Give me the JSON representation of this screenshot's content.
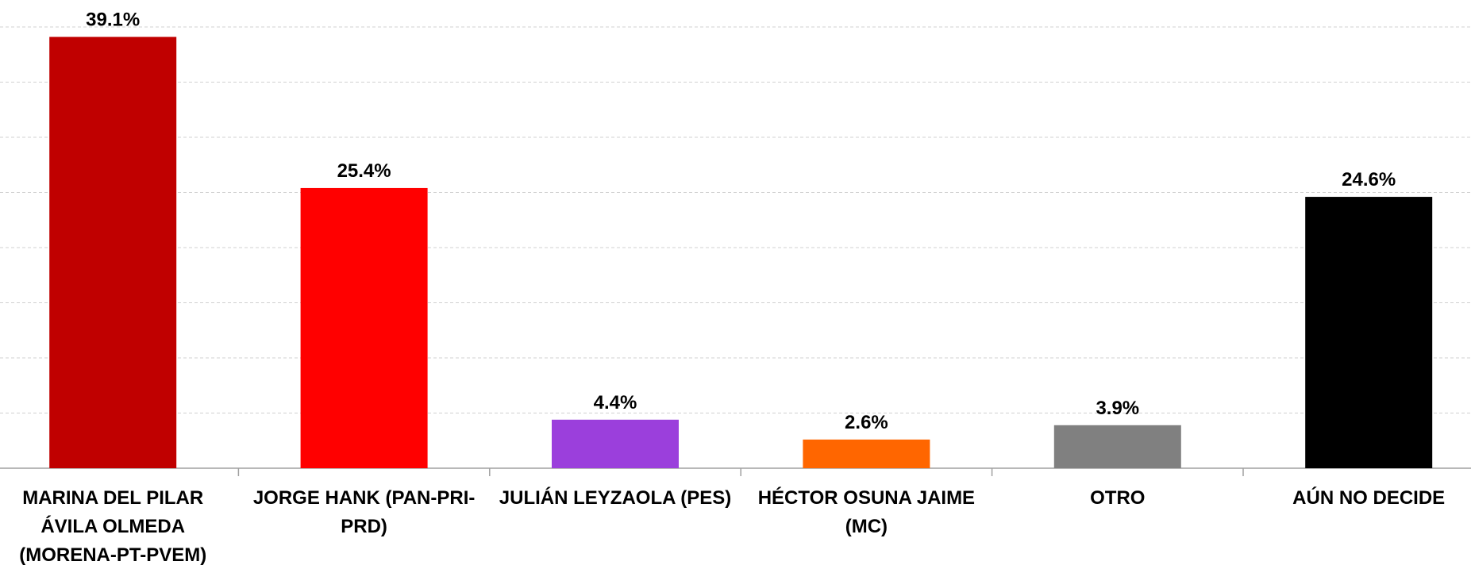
{
  "chart_data": {
    "type": "bar",
    "categories": [
      "MARINA DEL PILAR ÁVILA OLMEDA (MORENA-PT-PVEM)",
      "JORGE HANK (PAN-PRI-PRD)",
      "JULIÁN LEYZAOLA (PES)",
      "HÉCTOR OSUNA JAIME (MC)",
      "OTRO",
      "AÚN NO DECIDE"
    ],
    "values": [
      39.1,
      25.4,
      4.4,
      2.6,
      3.9,
      24.6
    ],
    "value_labels": [
      "39.1%",
      "25.4%",
      "4.4%",
      "2.6%",
      "3.9%",
      "24.6%"
    ],
    "colors": [
      "#c00000",
      "#ff0000",
      "#9b3fdc",
      "#ff6600",
      "#808080",
      "#000000"
    ],
    "ylim": [
      0,
      40
    ],
    "yticks": [
      0,
      5,
      10,
      15,
      20,
      25,
      30,
      35,
      40
    ],
    "grid": true
  }
}
